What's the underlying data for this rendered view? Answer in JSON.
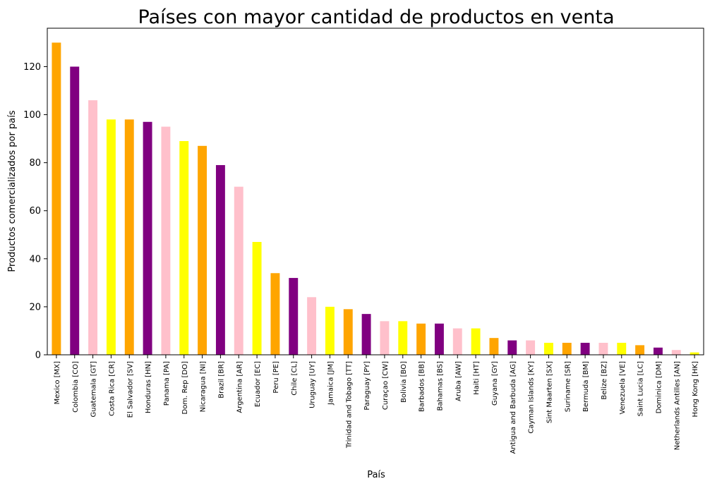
{
  "chart_data": {
    "type": "bar",
    "title": "Países con mayor cantidad de productos en venta",
    "xlabel": "País",
    "ylabel": "Productos comercializados por país",
    "ylim": [
      0,
      136
    ],
    "yticks": [
      0,
      20,
      40,
      60,
      80,
      100,
      120
    ],
    "grid": false,
    "legend": "none",
    "color_cycle": [
      "#FFA500",
      "#800080",
      "#FFC0CB",
      "#FFFF00"
    ],
    "categories": [
      "Mexico [MX]",
      "Colombia [CO]",
      "Guatemala [GT]",
      "Costa Rica [CR]",
      "El Salvador [SV]",
      "Honduras [HN]",
      "Panama [PA]",
      "Dom. Rep [DO]",
      "Nicaragua [NI]",
      "Brazil [BR]",
      "Argentina [AR]",
      "Ecuador [EC]",
      "Peru [PE]",
      "Chile [CL]",
      "Uruguay [UY]",
      "Jamaica [JM]",
      "Trinidad and Tobago [TT]",
      "Paraguay [PY]",
      "Curaçao [CW]",
      "Bolivia [BO]",
      "Barbados [BB]",
      "Bahamas [BS]",
      "Aruba [AW]",
      "Haiti [HT]",
      "Guyana [GY]",
      "Antigua and Barbuda [AG]",
      "Cayman Islands [KY]",
      "Sint Maarten [SX]",
      "Suriname [SR]",
      "Bermuda [BM]",
      "Belize [BZ]",
      "Venezuela [VE]",
      "Saint Lucia [LC]",
      "Dominica [DM]",
      "Netherlands Antilles [AN]",
      "Hong Kong [HK]"
    ],
    "values": [
      130,
      120,
      106,
      98,
      98,
      97,
      95,
      89,
      87,
      79,
      70,
      47,
      34,
      32,
      24,
      20,
      19,
      17,
      14,
      14,
      13,
      13,
      11,
      11,
      7,
      6,
      6,
      5,
      5,
      5,
      5,
      5,
      4,
      3,
      2,
      1
    ]
  }
}
